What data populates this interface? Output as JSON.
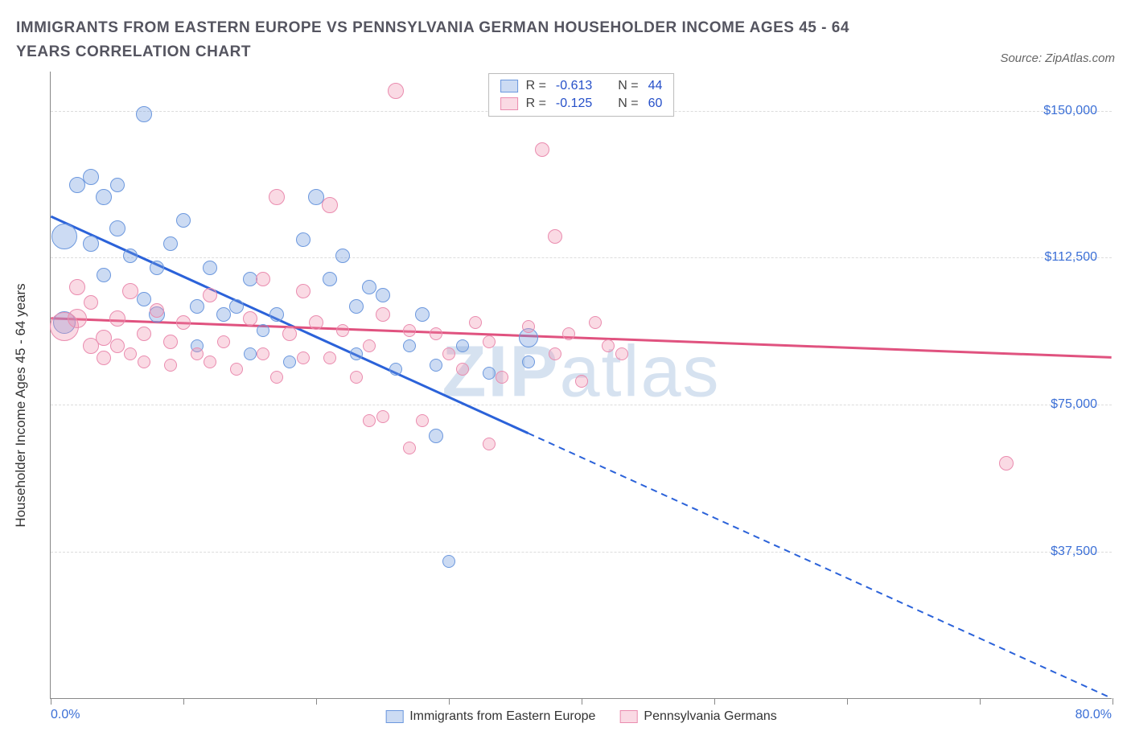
{
  "title": "IMMIGRANTS FROM EASTERN EUROPE VS PENNSYLVANIA GERMAN HOUSEHOLDER INCOME AGES 45 - 64 YEARS CORRELATION CHART",
  "source": "Source: ZipAtlas.com",
  "y_axis_label": "Householder Income Ages 45 - 64 years",
  "watermark_a": "ZIP",
  "watermark_b": "atlas",
  "chart": {
    "type": "scatter",
    "xlim": [
      0,
      80
    ],
    "ylim": [
      0,
      160000
    ],
    "y_ticks": [
      37500,
      75000,
      112500,
      150000
    ],
    "y_tick_labels": [
      "$37,500",
      "$75,000",
      "$112,500",
      "$150,000"
    ],
    "x_ticks": [
      0,
      10,
      20,
      30,
      40,
      50,
      60,
      70,
      80
    ],
    "x_min_label": "0.0%",
    "x_max_label": "80.0%",
    "grid_color": "#dcdcdc",
    "background_color": "#ffffff",
    "axis_color": "#888888",
    "title_fontsize": 19,
    "label_fontsize": 17,
    "tick_fontsize": 16,
    "tick_color": "#3b6fd6"
  },
  "series": [
    {
      "name": "Immigrants from Eastern Europe",
      "color_fill": "rgba(108,152,222,0.35)",
      "color_stroke": "#6c98de",
      "trend_color": "#2b62d9",
      "R": "-0.613",
      "N": "44",
      "trend": {
        "x1": 0,
        "y1": 123000,
        "x2": 80,
        "y2": 0,
        "solid_until_x": 36
      },
      "points": [
        {
          "x": 1,
          "y": 118000,
          "r": 16
        },
        {
          "x": 1,
          "y": 96000,
          "r": 14
        },
        {
          "x": 2,
          "y": 131000,
          "r": 10
        },
        {
          "x": 3,
          "y": 133000,
          "r": 10
        },
        {
          "x": 3,
          "y": 116000,
          "r": 10
        },
        {
          "x": 4,
          "y": 128000,
          "r": 10
        },
        {
          "x": 4,
          "y": 108000,
          "r": 9
        },
        {
          "x": 5,
          "y": 120000,
          "r": 10
        },
        {
          "x": 5,
          "y": 131000,
          "r": 9
        },
        {
          "x": 6,
          "y": 113000,
          "r": 9
        },
        {
          "x": 7,
          "y": 149000,
          "r": 10
        },
        {
          "x": 7,
          "y": 102000,
          "r": 9
        },
        {
          "x": 8,
          "y": 110000,
          "r": 9
        },
        {
          "x": 8,
          "y": 98000,
          "r": 10
        },
        {
          "x": 9,
          "y": 116000,
          "r": 9
        },
        {
          "x": 10,
          "y": 122000,
          "r": 9
        },
        {
          "x": 11,
          "y": 100000,
          "r": 9
        },
        {
          "x": 11,
          "y": 90000,
          "r": 8
        },
        {
          "x": 12,
          "y": 110000,
          "r": 9
        },
        {
          "x": 13,
          "y": 98000,
          "r": 9
        },
        {
          "x": 14,
          "y": 100000,
          "r": 9
        },
        {
          "x": 15,
          "y": 107000,
          "r": 9
        },
        {
          "x": 15,
          "y": 88000,
          "r": 8
        },
        {
          "x": 16,
          "y": 94000,
          "r": 8
        },
        {
          "x": 17,
          "y": 98000,
          "r": 9
        },
        {
          "x": 18,
          "y": 86000,
          "r": 8
        },
        {
          "x": 19,
          "y": 117000,
          "r": 9
        },
        {
          "x": 20,
          "y": 128000,
          "r": 10
        },
        {
          "x": 21,
          "y": 107000,
          "r": 9
        },
        {
          "x": 22,
          "y": 113000,
          "r": 9
        },
        {
          "x": 23,
          "y": 100000,
          "r": 9
        },
        {
          "x": 23,
          "y": 88000,
          "r": 8
        },
        {
          "x": 24,
          "y": 105000,
          "r": 9
        },
        {
          "x": 25,
          "y": 103000,
          "r": 9
        },
        {
          "x": 26,
          "y": 84000,
          "r": 8
        },
        {
          "x": 27,
          "y": 90000,
          "r": 8
        },
        {
          "x": 28,
          "y": 98000,
          "r": 9
        },
        {
          "x": 29,
          "y": 85000,
          "r": 8
        },
        {
          "x": 29,
          "y": 67000,
          "r": 9
        },
        {
          "x": 30,
          "y": 35000,
          "r": 8
        },
        {
          "x": 31,
          "y": 90000,
          "r": 8
        },
        {
          "x": 33,
          "y": 83000,
          "r": 8
        },
        {
          "x": 36,
          "y": 92000,
          "r": 12
        },
        {
          "x": 36,
          "y": 86000,
          "r": 8
        }
      ]
    },
    {
      "name": "Pennsylvania Germans",
      "color_fill": "rgba(238,140,170,0.32)",
      "color_stroke": "#ea8caf",
      "trend_color": "#e0527f",
      "R": "-0.125",
      "N": "60",
      "trend": {
        "x1": 0,
        "y1": 97000,
        "x2": 80,
        "y2": 87000,
        "solid_until_x": 80
      },
      "points": [
        {
          "x": 1,
          "y": 95000,
          "r": 18
        },
        {
          "x": 2,
          "y": 97000,
          "r": 12
        },
        {
          "x": 2,
          "y": 105000,
          "r": 10
        },
        {
          "x": 3,
          "y": 90000,
          "r": 10
        },
        {
          "x": 3,
          "y": 101000,
          "r": 9
        },
        {
          "x": 4,
          "y": 92000,
          "r": 10
        },
        {
          "x": 4,
          "y": 87000,
          "r": 9
        },
        {
          "x": 5,
          "y": 97000,
          "r": 10
        },
        {
          "x": 5,
          "y": 90000,
          "r": 9
        },
        {
          "x": 6,
          "y": 104000,
          "r": 10
        },
        {
          "x": 6,
          "y": 88000,
          "r": 8
        },
        {
          "x": 7,
          "y": 93000,
          "r": 9
        },
        {
          "x": 7,
          "y": 86000,
          "r": 8
        },
        {
          "x": 8,
          "y": 99000,
          "r": 9
        },
        {
          "x": 9,
          "y": 91000,
          "r": 9
        },
        {
          "x": 9,
          "y": 85000,
          "r": 8
        },
        {
          "x": 10,
          "y": 96000,
          "r": 9
        },
        {
          "x": 11,
          "y": 88000,
          "r": 8
        },
        {
          "x": 12,
          "y": 103000,
          "r": 9
        },
        {
          "x": 12,
          "y": 86000,
          "r": 8
        },
        {
          "x": 13,
          "y": 91000,
          "r": 8
        },
        {
          "x": 14,
          "y": 84000,
          "r": 8
        },
        {
          "x": 15,
          "y": 97000,
          "r": 9
        },
        {
          "x": 16,
          "y": 107000,
          "r": 9
        },
        {
          "x": 16,
          "y": 88000,
          "r": 8
        },
        {
          "x": 17,
          "y": 128000,
          "r": 10
        },
        {
          "x": 17,
          "y": 82000,
          "r": 8
        },
        {
          "x": 18,
          "y": 93000,
          "r": 9
        },
        {
          "x": 19,
          "y": 104000,
          "r": 9
        },
        {
          "x": 19,
          "y": 87000,
          "r": 8
        },
        {
          "x": 20,
          "y": 96000,
          "r": 9
        },
        {
          "x": 21,
          "y": 126000,
          "r": 10
        },
        {
          "x": 21,
          "y": 87000,
          "r": 8
        },
        {
          "x": 22,
          "y": 94000,
          "r": 8
        },
        {
          "x": 23,
          "y": 82000,
          "r": 8
        },
        {
          "x": 24,
          "y": 90000,
          "r": 8
        },
        {
          "x": 24,
          "y": 71000,
          "r": 8
        },
        {
          "x": 25,
          "y": 98000,
          "r": 9
        },
        {
          "x": 25,
          "y": 72000,
          "r": 8
        },
        {
          "x": 26,
          "y": 155000,
          "r": 10
        },
        {
          "x": 27,
          "y": 94000,
          "r": 8
        },
        {
          "x": 27,
          "y": 64000,
          "r": 8
        },
        {
          "x": 28,
          "y": 71000,
          "r": 8
        },
        {
          "x": 29,
          "y": 93000,
          "r": 8
        },
        {
          "x": 30,
          "y": 88000,
          "r": 8
        },
        {
          "x": 31,
          "y": 84000,
          "r": 8
        },
        {
          "x": 32,
          "y": 96000,
          "r": 8
        },
        {
          "x": 33,
          "y": 91000,
          "r": 8
        },
        {
          "x": 34,
          "y": 82000,
          "r": 8
        },
        {
          "x": 36,
          "y": 95000,
          "r": 8
        },
        {
          "x": 37,
          "y": 140000,
          "r": 9
        },
        {
          "x": 38,
          "y": 118000,
          "r": 9
        },
        {
          "x": 38,
          "y": 88000,
          "r": 8
        },
        {
          "x": 39,
          "y": 93000,
          "r": 8
        },
        {
          "x": 40,
          "y": 81000,
          "r": 8
        },
        {
          "x": 41,
          "y": 96000,
          "r": 8
        },
        {
          "x": 42,
          "y": 90000,
          "r": 8
        },
        {
          "x": 43,
          "y": 88000,
          "r": 8
        },
        {
          "x": 72,
          "y": 60000,
          "r": 9
        },
        {
          "x": 33,
          "y": 65000,
          "r": 8
        }
      ]
    }
  ],
  "legend_top": {
    "r_label": "R =",
    "n_label": "N ="
  }
}
